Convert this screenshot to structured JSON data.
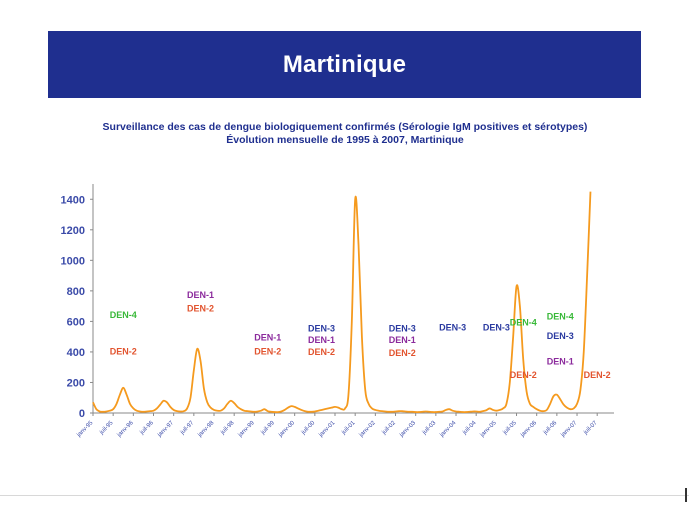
{
  "page": {
    "banner_title": "Martinique",
    "subtitle_line1": "Surveillance des cas de dengue biologiquement confirmés (Sérologie IgM positives et sérotypes)",
    "subtitle_line2": "Évolution mensuelle de 1995 à 2007, Martinique"
  },
  "colors": {
    "banner": "#1f2f8f",
    "line": "#f59a1e",
    "axis_text": "#3a4aa8",
    "DEN-1": "#8b2a9c",
    "DEN-2": "#e2542f",
    "DEN-3": "#2a3aa0",
    "DEN-4": "#38b838"
  },
  "chart_data": {
    "type": "line",
    "title": "Surveillance des cas de dengue biologiquement confirmés (Sérologie IgM positives et sérotypes)",
    "subtitle": "Évolution mensuelle de 1995 à 2007, Martinique",
    "xlabel": "",
    "ylabel": "",
    "ylim": [
      0,
      1500
    ],
    "yticks": [
      0,
      200,
      400,
      600,
      800,
      1000,
      1200,
      1400
    ],
    "xlim": [
      "1995-01",
      "2007-12"
    ],
    "xticks": [
      "janv-95",
      "juil-95",
      "janv-96",
      "juil-96",
      "janv-97",
      "juil-97",
      "janv-98",
      "juil-98",
      "janv-99",
      "juil-99",
      "janv-00",
      "juil-00",
      "janv-01",
      "juil-01",
      "janv-02",
      "juil-02",
      "janv-03",
      "juil-03",
      "janv-04",
      "juil-04",
      "janv-05",
      "juil-05",
      "janv-06",
      "juil-06",
      "janv-07",
      "juil-07"
    ],
    "grid": false,
    "series": [
      {
        "points": [
          [
            "1995-01",
            70
          ],
          [
            "1995-02",
            25
          ],
          [
            "1995-03",
            10
          ],
          [
            "1995-04",
            8
          ],
          [
            "1995-05",
            10
          ],
          [
            "1995-06",
            15
          ],
          [
            "1995-07",
            25
          ],
          [
            "1995-08",
            60
          ],
          [
            "1995-09",
            120
          ],
          [
            "1995-10",
            165
          ],
          [
            "1995-11",
            120
          ],
          [
            "1995-12",
            60
          ],
          [
            "1996-01",
            30
          ],
          [
            "1996-02",
            15
          ],
          [
            "1996-03",
            10
          ],
          [
            "1996-04",
            8
          ],
          [
            "1996-05",
            10
          ],
          [
            "1996-06",
            12
          ],
          [
            "1996-07",
            15
          ],
          [
            "1996-08",
            30
          ],
          [
            "1996-09",
            55
          ],
          [
            "1996-10",
            80
          ],
          [
            "1996-11",
            70
          ],
          [
            "1996-12",
            40
          ],
          [
            "1997-01",
            20
          ],
          [
            "1997-02",
            12
          ],
          [
            "1997-03",
            10
          ],
          [
            "1997-04",
            12
          ],
          [
            "1997-05",
            30
          ],
          [
            "1997-06",
            100
          ],
          [
            "1997-07",
            280
          ],
          [
            "1997-08",
            420
          ],
          [
            "1997-09",
            340
          ],
          [
            "1997-10",
            160
          ],
          [
            "1997-11",
            70
          ],
          [
            "1997-12",
            35
          ],
          [
            "1998-01",
            20
          ],
          [
            "1998-02",
            15
          ],
          [
            "1998-03",
            15
          ],
          [
            "1998-04",
            30
          ],
          [
            "1998-05",
            60
          ],
          [
            "1998-06",
            80
          ],
          [
            "1998-07",
            65
          ],
          [
            "1998-08",
            40
          ],
          [
            "1998-09",
            25
          ],
          [
            "1998-10",
            15
          ],
          [
            "1998-11",
            12
          ],
          [
            "1998-12",
            10
          ],
          [
            "1999-01",
            8
          ],
          [
            "1999-02",
            10
          ],
          [
            "1999-03",
            15
          ],
          [
            "1999-04",
            25
          ],
          [
            "1999-05",
            12
          ],
          [
            "1999-06",
            8
          ],
          [
            "1999-07",
            6
          ],
          [
            "1999-08",
            6
          ],
          [
            "1999-09",
            10
          ],
          [
            "1999-10",
            20
          ],
          [
            "1999-11",
            35
          ],
          [
            "1999-12",
            45
          ],
          [
            "2000-01",
            40
          ],
          [
            "2000-02",
            30
          ],
          [
            "2000-03",
            20
          ],
          [
            "2000-04",
            12
          ],
          [
            "2000-05",
            8
          ],
          [
            "2000-06",
            8
          ],
          [
            "2000-07",
            10
          ],
          [
            "2000-08",
            15
          ],
          [
            "2000-09",
            20
          ],
          [
            "2000-10",
            25
          ],
          [
            "2000-11",
            30
          ],
          [
            "2000-12",
            35
          ],
          [
            "2001-01",
            40
          ],
          [
            "2001-02",
            35
          ],
          [
            "2001-03",
            25
          ],
          [
            "2001-04",
            30
          ],
          [
            "2001-05",
            120
          ],
          [
            "2001-06",
            600
          ],
          [
            "2001-07",
            1400
          ],
          [
            "2001-08",
            1100
          ],
          [
            "2001-09",
            500
          ],
          [
            "2001-10",
            150
          ],
          [
            "2001-11",
            60
          ],
          [
            "2001-12",
            30
          ],
          [
            "2002-01",
            20
          ],
          [
            "2002-02",
            15
          ],
          [
            "2002-03",
            12
          ],
          [
            "2002-04",
            10
          ],
          [
            "2002-05",
            8
          ],
          [
            "2002-06",
            8
          ],
          [
            "2002-07",
            10
          ],
          [
            "2002-08",
            12
          ],
          [
            "2002-09",
            12
          ],
          [
            "2002-10",
            10
          ],
          [
            "2002-11",
            8
          ],
          [
            "2002-12",
            8
          ],
          [
            "2003-01",
            6
          ],
          [
            "2003-02",
            6
          ],
          [
            "2003-03",
            8
          ],
          [
            "2003-04",
            10
          ],
          [
            "2003-05",
            8
          ],
          [
            "2003-06",
            6
          ],
          [
            "2003-07",
            6
          ],
          [
            "2003-08",
            8
          ],
          [
            "2003-09",
            10
          ],
          [
            "2003-10",
            20
          ],
          [
            "2003-11",
            25
          ],
          [
            "2003-12",
            15
          ],
          [
            "2004-01",
            10
          ],
          [
            "2004-02",
            8
          ],
          [
            "2004-03",
            6
          ],
          [
            "2004-04",
            6
          ],
          [
            "2004-05",
            8
          ],
          [
            "2004-06",
            10
          ],
          [
            "2004-07",
            10
          ],
          [
            "2004-08",
            8
          ],
          [
            "2004-09",
            12
          ],
          [
            "2004-10",
            18
          ],
          [
            "2004-11",
            30
          ],
          [
            "2004-12",
            20
          ],
          [
            "2005-01",
            15
          ],
          [
            "2005-02",
            20
          ],
          [
            "2005-03",
            30
          ],
          [
            "2005-04",
            60
          ],
          [
            "2005-05",
            200
          ],
          [
            "2005-06",
            500
          ],
          [
            "2005-07",
            830
          ],
          [
            "2005-08",
            700
          ],
          [
            "2005-09",
            350
          ],
          [
            "2005-10",
            140
          ],
          [
            "2005-11",
            60
          ],
          [
            "2005-12",
            40
          ],
          [
            "2006-01",
            25
          ],
          [
            "2006-02",
            15
          ],
          [
            "2006-03",
            12
          ],
          [
            "2006-04",
            20
          ],
          [
            "2006-05",
            60
          ],
          [
            "2006-06",
            110
          ],
          [
            "2006-07",
            120
          ],
          [
            "2006-08",
            90
          ],
          [
            "2006-09",
            55
          ],
          [
            "2006-10",
            35
          ],
          [
            "2006-11",
            25
          ],
          [
            "2006-12",
            30
          ],
          [
            "2007-01",
            60
          ],
          [
            "2007-02",
            150
          ],
          [
            "2007-03",
            400
          ],
          [
            "2007-04",
            900
          ],
          [
            "2007-05",
            1450
          ]
        ]
      }
    ],
    "annotations": [
      {
        "text": "DEN-4",
        "serotype": "DEN-4",
        "x": "1995-10",
        "y": 650
      },
      {
        "text": "DEN-2",
        "serotype": "DEN-2",
        "x": "1995-10",
        "y": 410
      },
      {
        "text": "DEN-1",
        "serotype": "DEN-1",
        "x": "1997-09",
        "y": 780
      },
      {
        "text": "DEN-2",
        "serotype": "DEN-2",
        "x": "1997-09",
        "y": 690
      },
      {
        "text": "DEN-1",
        "serotype": "DEN-1",
        "x": "1999-05",
        "y": 500
      },
      {
        "text": "DEN-2",
        "serotype": "DEN-2",
        "x": "1999-05",
        "y": 410
      },
      {
        "text": "DEN-3",
        "serotype": "DEN-3",
        "x": "2000-09",
        "y": 560
      },
      {
        "text": "DEN-1",
        "serotype": "DEN-1",
        "x": "2000-09",
        "y": 485
      },
      {
        "text": "DEN-2",
        "serotype": "DEN-2",
        "x": "2000-09",
        "y": 405
      },
      {
        "text": "DEN-3",
        "serotype": "DEN-3",
        "x": "2002-09",
        "y": 560
      },
      {
        "text": "DEN-1",
        "serotype": "DEN-1",
        "x": "2002-09",
        "y": 485
      },
      {
        "text": "DEN-2",
        "serotype": "DEN-2",
        "x": "2002-09",
        "y": 400
      },
      {
        "text": "DEN-3",
        "serotype": "DEN-3",
        "x": "2003-12",
        "y": 565
      },
      {
        "text": "DEN-3",
        "serotype": "DEN-3",
        "x": "2005-01",
        "y": 565
      },
      {
        "text": "DEN-4",
        "serotype": "DEN-4",
        "x": "2005-09",
        "y": 600
      },
      {
        "text": "DEN-2",
        "serotype": "DEN-2",
        "x": "2005-09",
        "y": 255
      },
      {
        "text": "DEN-4",
        "serotype": "DEN-4",
        "x": "2006-08",
        "y": 640
      },
      {
        "text": "DEN-3",
        "serotype": "DEN-3",
        "x": "2006-08",
        "y": 510
      },
      {
        "text": "DEN-1",
        "serotype": "DEN-1",
        "x": "2006-08",
        "y": 345
      },
      {
        "text": "DEN-2",
        "serotype": "DEN-2",
        "x": "2007-07",
        "y": 255
      }
    ]
  }
}
